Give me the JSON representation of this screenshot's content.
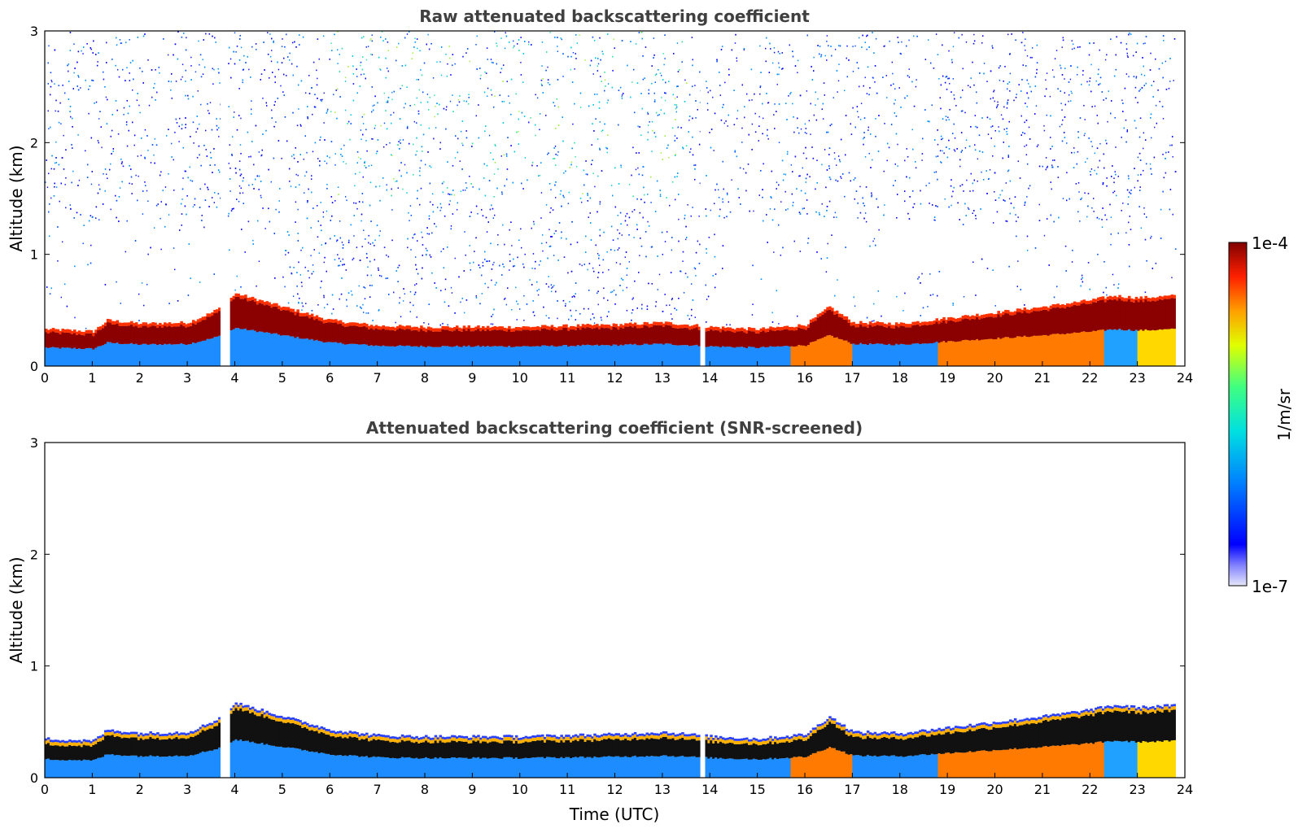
{
  "chart_data": [
    {
      "type": "heatmap",
      "title": "Raw attenuated backscattering coefficient",
      "xlabel": "",
      "ylabel": "Altitude (km)",
      "xlim": [
        0,
        24
      ],
      "ylim": [
        0,
        3
      ],
      "x_ticks": [
        0,
        1,
        2,
        3,
        4,
        5,
        6,
        7,
        8,
        9,
        10,
        11,
        12,
        13,
        14,
        15,
        16,
        17,
        18,
        19,
        20,
        21,
        22,
        23,
        24
      ],
      "y_ticks": [
        0,
        1,
        2,
        3
      ],
      "gaps_utc": [
        [
          3.7,
          3.85
        ],
        [
          13.8,
          13.9
        ]
      ],
      "boundary_layer_top_km": {
        "x": [
          0,
          1,
          1.3,
          2,
          3,
          3.5,
          3.7,
          4,
          5,
          6,
          7,
          8,
          9,
          10,
          11,
          12,
          13,
          13.8,
          14,
          15,
          16,
          16.5,
          17,
          18,
          19,
          20,
          21,
          22,
          22.5,
          23,
          23.8
        ],
        "y": [
          0.3,
          0.28,
          0.38,
          0.35,
          0.36,
          0.45,
          0.5,
          0.62,
          0.5,
          0.38,
          0.33,
          0.32,
          0.32,
          0.32,
          0.33,
          0.34,
          0.36,
          0.33,
          0.32,
          0.3,
          0.34,
          0.5,
          0.36,
          0.35,
          0.4,
          0.45,
          0.5,
          0.56,
          0.6,
          0.58,
          0.6
        ]
      },
      "colorbar": {
        "label": "1/m/sr",
        "min_label": "1e-7",
        "max_label": "1e-4",
        "scale": "log"
      }
    },
    {
      "type": "heatmap",
      "title": "Attenuated backscattering coefficient (SNR-screened)",
      "xlabel": "Time (UTC)",
      "ylabel": "Altitude (km)",
      "xlim": [
        0,
        24
      ],
      "ylim": [
        0,
        3
      ],
      "x_ticks": [
        0,
        1,
        2,
        3,
        4,
        5,
        6,
        7,
        8,
        9,
        10,
        11,
        12,
        13,
        14,
        15,
        16,
        17,
        18,
        19,
        20,
        21,
        22,
        23,
        24
      ],
      "y_ticks": [
        0,
        1,
        2,
        3
      ],
      "gaps_utc": [
        [
          3.7,
          3.85
        ],
        [
          13.8,
          13.9
        ]
      ]
    }
  ]
}
